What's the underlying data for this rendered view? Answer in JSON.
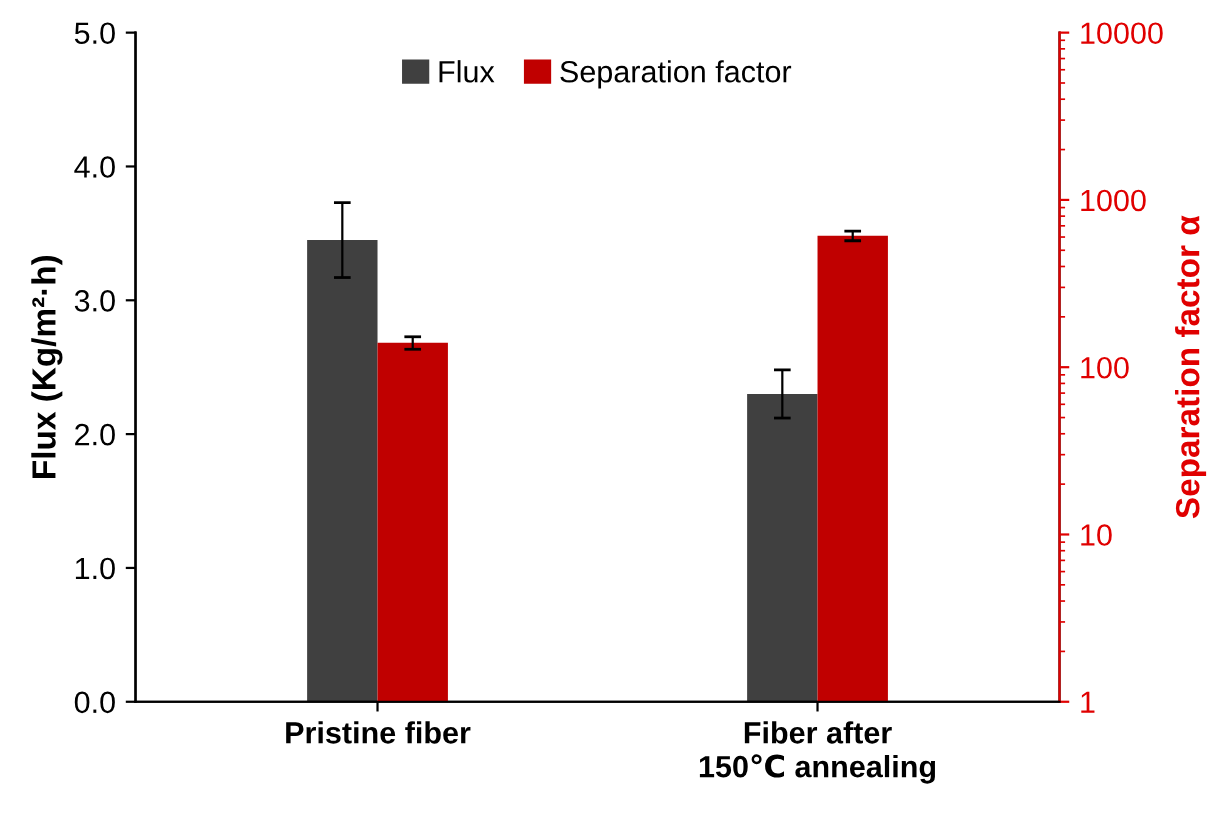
{
  "chart_data": {
    "type": "bar",
    "ylabel": "Flux (Kg/m²·h)",
    "y2label": "Separation factor α",
    "categories": [
      "Pristine fiber",
      "Fiber after\n150℃ annealing"
    ],
    "series": [
      {
        "name": "Flux",
        "color": "#404040",
        "values": [
          3.45,
          2.3
        ],
        "errors": [
          0.28,
          0.18
        ]
      },
      {
        "name": "Separation factor",
        "color": "#c00000",
        "values": [
          140,
          610
        ],
        "errors": [
          12,
          40
        ],
        "axis": "y2"
      }
    ],
    "ylim": [
      0,
      5
    ],
    "yticks": [
      {
        "value": 0,
        "label": "0.0"
      },
      {
        "value": 1,
        "label": "1.0"
      },
      {
        "value": 2,
        "label": "2.0"
      },
      {
        "value": 3,
        "label": "3.0"
      },
      {
        "value": 4,
        "label": "4.0"
      },
      {
        "value": 5,
        "label": "5.0"
      }
    ],
    "y2lim": [
      1,
      10000
    ],
    "y2ticks": [
      1,
      10,
      100,
      1000,
      10000
    ],
    "log": "y2",
    "legend": "top",
    "grid": false
  }
}
